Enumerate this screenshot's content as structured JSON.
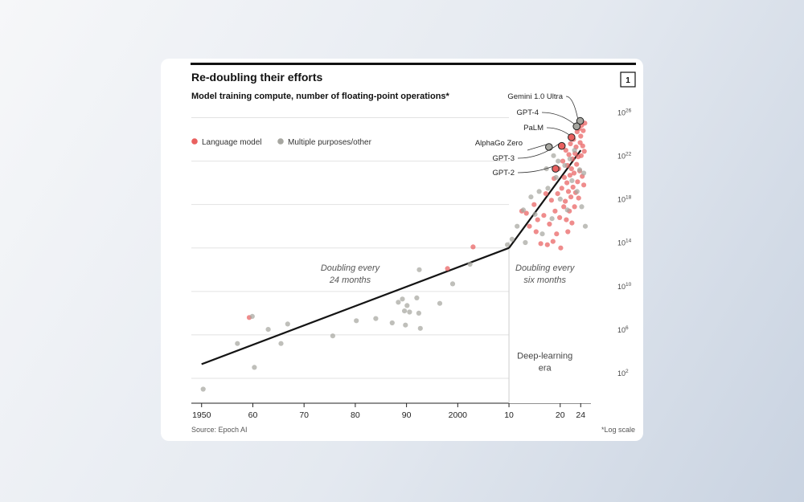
{
  "colors": {
    "language": "#e9605f",
    "other": "#a6a6a0",
    "trend": "#141414",
    "grid": "#e2e2e2",
    "era_bg": "#ffffff"
  },
  "chart_data": {
    "type": "scatter",
    "title": "Re-doubling their efforts",
    "subtitle": "Model training compute, number of floating-point operations*",
    "chart_number": "1",
    "xlabel": "",
    "ylabel": "",
    "xlim": [
      1948,
      2026
    ],
    "ylim": [
      0,
      27
    ],
    "x_ticks": [
      {
        "value": 1950,
        "label": "1950"
      },
      {
        "value": 1960,
        "label": "60"
      },
      {
        "value": 1970,
        "label": "70"
      },
      {
        "value": 1980,
        "label": "80"
      },
      {
        "value": 1990,
        "label": "90"
      },
      {
        "value": 2000,
        "label": "2000"
      },
      {
        "value": 2010,
        "label": "10"
      },
      {
        "value": 2020,
        "label": "20"
      },
      {
        "value": 2024,
        "label": "24"
      }
    ],
    "y_ticks": [
      {
        "value": 2,
        "base": "10",
        "exp": "2"
      },
      {
        "value": 6,
        "base": "10",
        "exp": "6"
      },
      {
        "value": 10,
        "base": "10",
        "exp": "10"
      },
      {
        "value": 14,
        "base": "10",
        "exp": "14"
      },
      {
        "value": 18,
        "base": "10",
        "exp": "18"
      },
      {
        "value": 22,
        "base": "10",
        "exp": "22"
      },
      {
        "value": 26,
        "base": "10",
        "exp": "26"
      }
    ],
    "legend": [
      {
        "key": "language",
        "label": "Language model"
      },
      {
        "key": "other",
        "label": "Multiple purposes/other"
      }
    ],
    "series": [
      {
        "name": "Language model",
        "key": "language",
        "points": [
          [
            1959.3,
            7.6
          ],
          [
            1998,
            12.1
          ],
          [
            2003,
            14.1
          ],
          [
            2012.5,
            17.4
          ],
          [
            2013.4,
            17.2
          ],
          [
            2014,
            16.0
          ],
          [
            2014.9,
            18.0
          ],
          [
            2015.3,
            15.5
          ],
          [
            2015.6,
            16.6
          ],
          [
            2016.2,
            14.4
          ],
          [
            2016.8,
            17.0
          ],
          [
            2017.2,
            19.0
          ],
          [
            2017.5,
            14.3
          ],
          [
            2017.9,
            16.2
          ],
          [
            2018.3,
            18.4
          ],
          [
            2018.6,
            14.6
          ],
          [
            2018.8,
            20.4
          ],
          [
            2019,
            17.4
          ],
          [
            2019.3,
            15.3
          ],
          [
            2019.5,
            19.0
          ],
          [
            2019.7,
            21.3
          ],
          [
            2019.9,
            16.8
          ],
          [
            2020.1,
            14.0
          ],
          [
            2020.3,
            19.5
          ],
          [
            2020.5,
            22.0
          ],
          [
            2020.7,
            17.8
          ],
          [
            2020.8,
            20.5
          ],
          [
            2021,
            18.3
          ],
          [
            2021.1,
            23.0
          ],
          [
            2021.2,
            16.6
          ],
          [
            2021.3,
            20.0
          ],
          [
            2021.4,
            21.6
          ],
          [
            2021.5,
            15.5
          ],
          [
            2021.6,
            19.2
          ],
          [
            2021.7,
            22.6
          ],
          [
            2021.8,
            17.4
          ],
          [
            2021.9,
            20.7
          ],
          [
            2022,
            23.6
          ],
          [
            2022.1,
            18.7
          ],
          [
            2022.2,
            21.3
          ],
          [
            2022.3,
            16.3
          ],
          [
            2022.4,
            22.2
          ],
          [
            2022.5,
            19.6
          ],
          [
            2022.6,
            24.0
          ],
          [
            2022.7,
            20.9
          ],
          [
            2022.8,
            17.8
          ],
          [
            2022.9,
            22.7
          ],
          [
            2023,
            19.1
          ],
          [
            2023.1,
            23.3
          ],
          [
            2023.2,
            21.7
          ],
          [
            2023.3,
            24.7
          ],
          [
            2023.4,
            20.1
          ],
          [
            2023.5,
            22.4
          ],
          [
            2023.6,
            18.6
          ],
          [
            2023.7,
            25.0
          ],
          [
            2023.8,
            21.1
          ],
          [
            2023.9,
            23.7
          ],
          [
            2024,
            24.3
          ],
          [
            2024.1,
            22.5
          ],
          [
            2024.2,
            25.3
          ],
          [
            2024.3,
            20.6
          ],
          [
            2024.4,
            23.4
          ],
          [
            2024.5,
            24.8
          ],
          [
            2024.6,
            19.8
          ],
          [
            2024.7,
            22.9
          ],
          [
            2024.8,
            25.5
          ]
        ]
      },
      {
        "name": "Multiple purposes/other",
        "key": "other",
        "points": [
          [
            1950.3,
            1.0
          ],
          [
            1957,
            5.2
          ],
          [
            1959.9,
            7.7
          ],
          [
            1960.3,
            3.0
          ],
          [
            1963,
            6.5
          ],
          [
            1965.5,
            5.2
          ],
          [
            1966.8,
            7.0
          ],
          [
            1975.6,
            5.9
          ],
          [
            1980.2,
            7.3
          ],
          [
            1984,
            7.5
          ],
          [
            1987.2,
            7.1
          ],
          [
            1988.4,
            9.0
          ],
          [
            1989.2,
            9.3
          ],
          [
            1989.6,
            8.2
          ],
          [
            1989.8,
            6.9
          ],
          [
            1990.1,
            8.7
          ],
          [
            1990.6,
            8.1
          ],
          [
            1992,
            9.4
          ],
          [
            1992.4,
            8.0
          ],
          [
            1992.7,
            6.6
          ],
          [
            1992.5,
            12.0
          ],
          [
            1996.5,
            8.9
          ],
          [
            1999,
            10.7
          ],
          [
            2002.4,
            12.5
          ],
          [
            2009.7,
            14.3
          ],
          [
            2010.6,
            14.8
          ],
          [
            2011.6,
            16.0
          ],
          [
            2012.8,
            17.5
          ],
          [
            2013.2,
            14.5
          ],
          [
            2014.3,
            18.7
          ],
          [
            2015.1,
            17.1
          ],
          [
            2015.9,
            19.2
          ],
          [
            2016.5,
            15.3
          ],
          [
            2017.3,
            21.3
          ],
          [
            2017.6,
            19.5
          ],
          [
            2018.4,
            16.7
          ],
          [
            2018.7,
            22.5
          ],
          [
            2019.2,
            20.5
          ],
          [
            2019.6,
            22.0
          ],
          [
            2020,
            18.5
          ],
          [
            2020.4,
            23.5
          ],
          [
            2020.9,
            21.6
          ],
          [
            2021.4,
            17.5
          ],
          [
            2021.9,
            22.2
          ],
          [
            2022.3,
            20.2
          ],
          [
            2022.8,
            23.0
          ],
          [
            2023.3,
            19.2
          ],
          [
            2023.8,
            21.2
          ],
          [
            2024.2,
            17.8
          ],
          [
            2024.6,
            20.9
          ],
          [
            2024.9,
            16.0
          ]
        ]
      }
    ],
    "trend_lines": [
      {
        "name": "Doubling every 24 months",
        "points": [
          [
            1950,
            3.3
          ],
          [
            2010,
            14.0
          ]
        ]
      },
      {
        "name": "Doubling every six months",
        "points": [
          [
            2010,
            14.0
          ],
          [
            2024,
            23.0
          ]
        ]
      }
    ],
    "era_start": 2010,
    "annotations": [
      {
        "lines": [
          "Doubling every",
          "24 months"
        ],
        "x": 1979,
        "y": 11.9,
        "style": "italic"
      },
      {
        "lines": [
          "Doubling every",
          "six months"
        ],
        "x": 2017,
        "y": 11.9,
        "style": "italic"
      },
      {
        "lines": [
          "Deep-learning",
          "era"
        ],
        "x": 2017,
        "y": 3.8,
        "style": "era"
      }
    ],
    "highlighted_models": [
      {
        "label": "Gemini 1.0 Ultra",
        "x": 2023.9,
        "y": 25.7,
        "type": "other"
      },
      {
        "label": "GPT-4",
        "x": 2023.2,
        "y": 25.2,
        "type": "other"
      },
      {
        "label": "PaLM",
        "x": 2022.2,
        "y": 24.2,
        "type": "language"
      },
      {
        "label": "AlphaGo Zero",
        "x": 2017.8,
        "y": 23.3,
        "type": "other"
      },
      {
        "label": "GPT-3",
        "x": 2020.3,
        "y": 23.4,
        "type": "language"
      },
      {
        "label": "GPT-2",
        "x": 2019.1,
        "y": 21.3,
        "type": "language"
      }
    ],
    "source": "Source: Epoch AI",
    "footnote": "*Log scale"
  }
}
